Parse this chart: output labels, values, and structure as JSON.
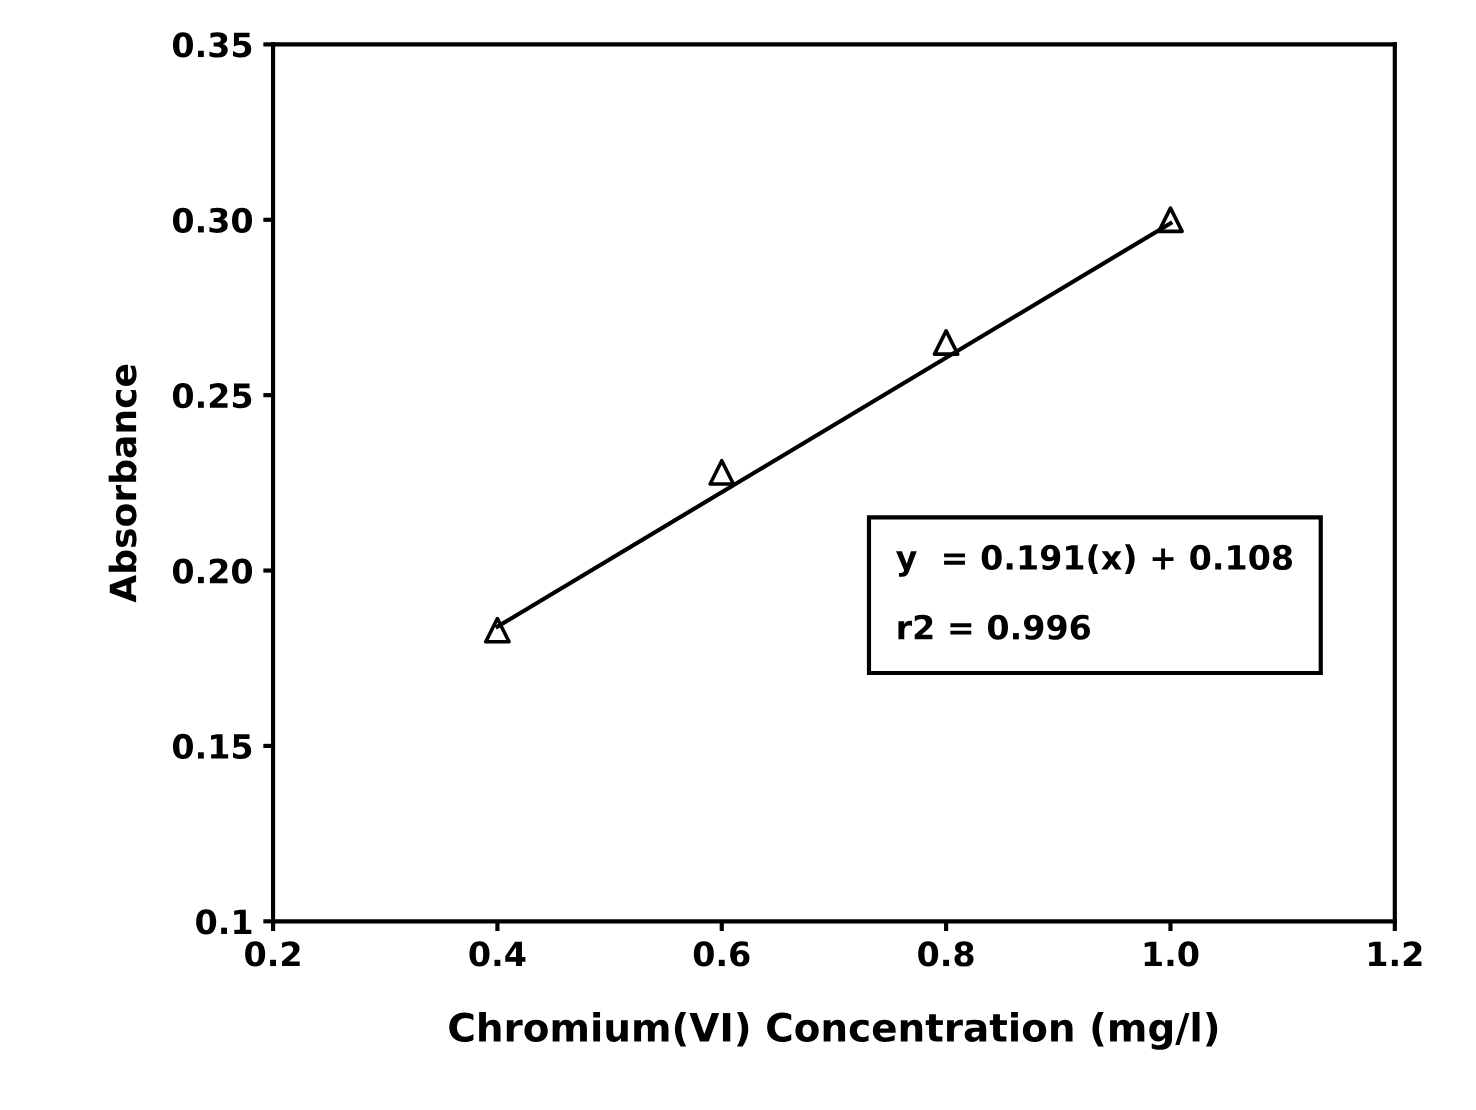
{
  "chart_data": {
    "type": "scatter",
    "xlabel": "Chromium(VI) Concentration (mg/l)",
    "ylabel": "Absorbance",
    "x": [
      0.4,
      0.6,
      0.8,
      1.0
    ],
    "series": [
      {
        "color": "#000000",
        "marker": "triangle",
        "values": [
          0.183,
          0.228,
          0.265,
          0.3
        ]
      },
      {
        "type": "line",
        "color": "#000000",
        "marker": "none",
        "line_style": "solid",
        "x": [
          0.4,
          1.0
        ],
        "values": [
          0.184,
          0.299
        ]
      }
    ],
    "xlim": [
      0.2,
      1.2
    ],
    "ylim": [
      0.1,
      0.35
    ],
    "xticks": [
      0.2,
      0.4,
      0.6,
      0.8,
      {
        "value": 1.0,
        "label": "1.0"
      },
      1.2
    ],
    "yticks": [
      0.1,
      0.15,
      {
        "value": 0.2,
        "label": "0.20"
      },
      0.25,
      {
        "value": 0.3,
        "label": "0.30"
      },
      0.35
    ],
    "annotations": [
      "y  = 0.191(x) + 0.108",
      "r2 = 0.996"
    ],
    "grid": false,
    "legend": false
  }
}
